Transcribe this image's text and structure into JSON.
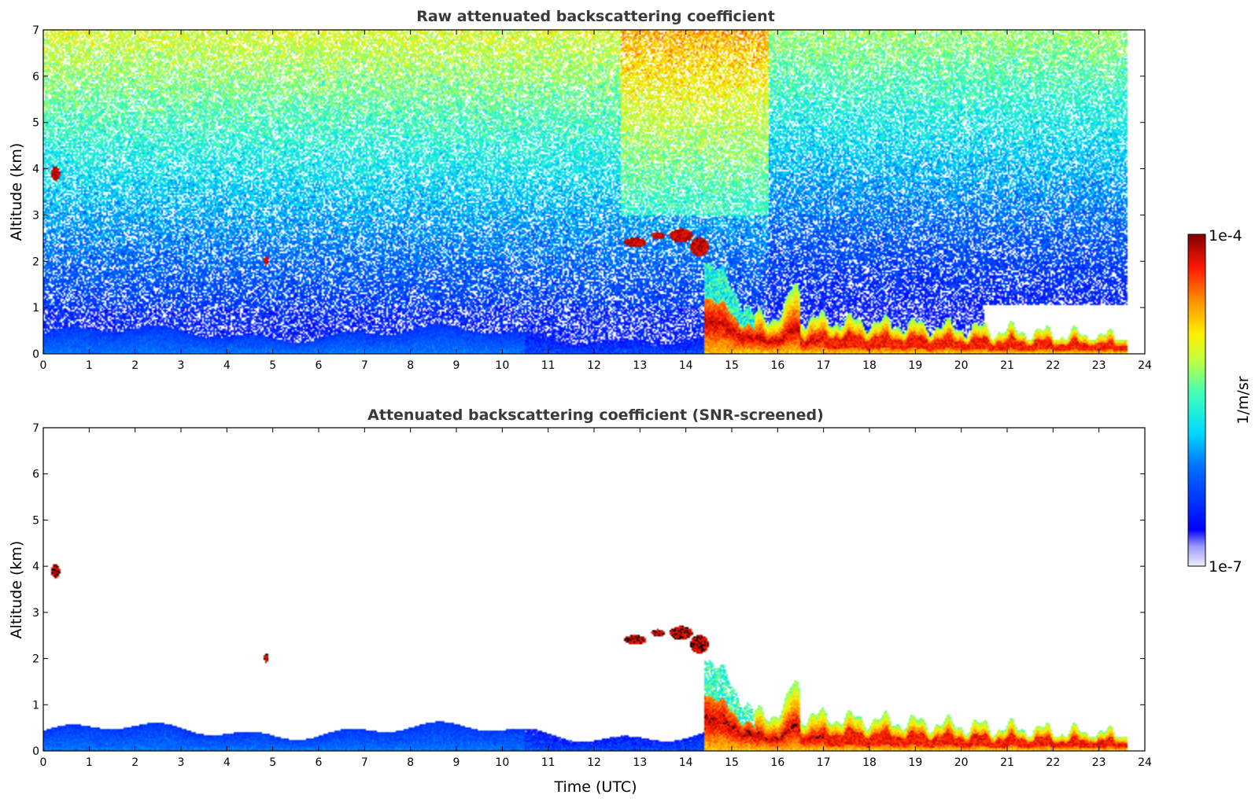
{
  "chart_data": [
    {
      "type": "heatmap",
      "title": "Raw attenuated backscattering coefficient",
      "xlabel": "",
      "ylabel": "Altitude (km)",
      "xlim": [
        0,
        24
      ],
      "ylim": [
        0,
        7
      ],
      "xticks": [
        "0",
        "1",
        "2",
        "3",
        "4",
        "5",
        "6",
        "7",
        "8",
        "9",
        "10",
        "11",
        "12",
        "13",
        "14",
        "15",
        "16",
        "17",
        "18",
        "19",
        "20",
        "21",
        "22",
        "23",
        "24"
      ],
      "yticks": [
        "0",
        "1",
        "2",
        "3",
        "4",
        "5",
        "6",
        "7"
      ],
      "data_end_hour": 23.65,
      "features": [
        {
          "name": "boundary-layer",
          "hours": [
            0,
            15.8
          ],
          "top_km": 0.5,
          "level": "low"
        },
        {
          "name": "cloud-layer",
          "hours": [
            15.5,
            23.65
          ],
          "top_km": 0.4,
          "level": "high"
        },
        {
          "name": "elevated-clouds",
          "hours": [
            12.6,
            14.6
          ],
          "altitude_km": 2.5,
          "level": "high"
        },
        {
          "name": "cloud-patch",
          "hours": [
            0.1,
            0.35
          ],
          "altitude_km": 3.9,
          "level": "high"
        },
        {
          "name": "cloud-patch",
          "hours": [
            4.8,
            4.95
          ],
          "altitude_km": 2.0,
          "level": "high"
        }
      ]
    },
    {
      "type": "heatmap",
      "title": "Attenuated backscattering coefficient (SNR-screened)",
      "xlabel": "Time (UTC)",
      "ylabel": "Altitude (km)",
      "xlim": [
        0,
        24
      ],
      "ylim": [
        0,
        7
      ],
      "xticks": [
        "0",
        "1",
        "2",
        "3",
        "4",
        "5",
        "6",
        "7",
        "8",
        "9",
        "10",
        "11",
        "12",
        "13",
        "14",
        "15",
        "16",
        "17",
        "18",
        "19",
        "20",
        "21",
        "22",
        "23",
        "24"
      ],
      "yticks": [
        "0",
        "1",
        "2",
        "3",
        "4",
        "5",
        "6",
        "7"
      ],
      "data_end_hour": 23.65
    }
  ],
  "colorbar": {
    "max_label": "1e-4",
    "min_label": "1e-7",
    "label": "1/m/sr",
    "scale": "log",
    "range": [
      1e-07,
      0.0001
    ]
  }
}
